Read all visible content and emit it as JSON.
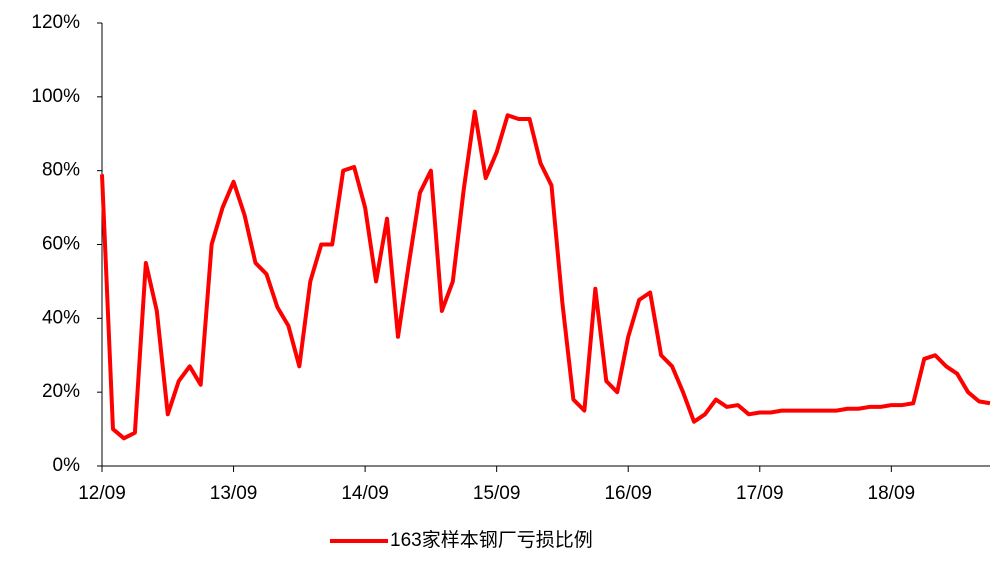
{
  "chart_data": {
    "type": "line",
    "categories": [
      "12/09",
      null,
      null,
      null,
      null,
      null,
      null,
      null,
      null,
      null,
      null,
      null,
      "13/09",
      null,
      null,
      null,
      null,
      null,
      null,
      null,
      null,
      null,
      null,
      null,
      "14/09",
      null,
      null,
      null,
      null,
      null,
      null,
      null,
      null,
      null,
      null,
      null,
      "15/09",
      null,
      null,
      null,
      null,
      null,
      null,
      null,
      null,
      null,
      null,
      null,
      "16/09",
      null,
      null,
      null,
      null,
      null,
      null,
      null,
      null,
      null,
      null,
      null,
      "17/09",
      null,
      null,
      null,
      null,
      null,
      null,
      null,
      null,
      null,
      null,
      null,
      "18/09",
      null,
      null,
      null,
      null,
      null,
      null,
      null,
      null,
      null
    ],
    "series": [
      {
        "name": "163家样本钢厂亏损比例",
        "color": "#ff0000",
        "values": [
          79,
          10,
          7.5,
          9,
          55,
          42,
          14,
          23,
          27,
          22,
          60,
          70,
          77,
          68,
          55,
          52,
          43,
          38,
          27,
          50,
          60,
          60,
          80,
          81,
          70,
          50,
          67,
          35,
          55,
          74,
          80,
          42,
          50,
          75,
          96,
          78,
          85,
          95,
          94,
          94,
          82,
          76,
          44,
          18,
          15,
          48,
          23,
          20,
          35,
          45,
          47,
          30,
          27,
          20,
          12,
          14,
          18,
          16,
          16.5,
          14,
          14.5,
          14.5,
          15,
          15,
          15,
          15,
          15,
          15,
          15.5,
          15.5,
          16,
          16,
          16.5,
          16.5,
          17,
          29,
          30,
          27,
          25,
          20,
          17.5,
          17
        ]
      }
    ],
    "ylim": [
      0,
      120
    ],
    "yticks": [
      {
        "value": 0,
        "label": "0%"
      },
      {
        "value": 20,
        "label": "20%"
      },
      {
        "value": 40,
        "label": "40%"
      },
      {
        "value": 60,
        "label": "60%"
      },
      {
        "value": 80,
        "label": "80%"
      },
      {
        "value": 100,
        "label": "100%"
      },
      {
        "value": 120,
        "label": "120%"
      }
    ],
    "grid": false
  }
}
